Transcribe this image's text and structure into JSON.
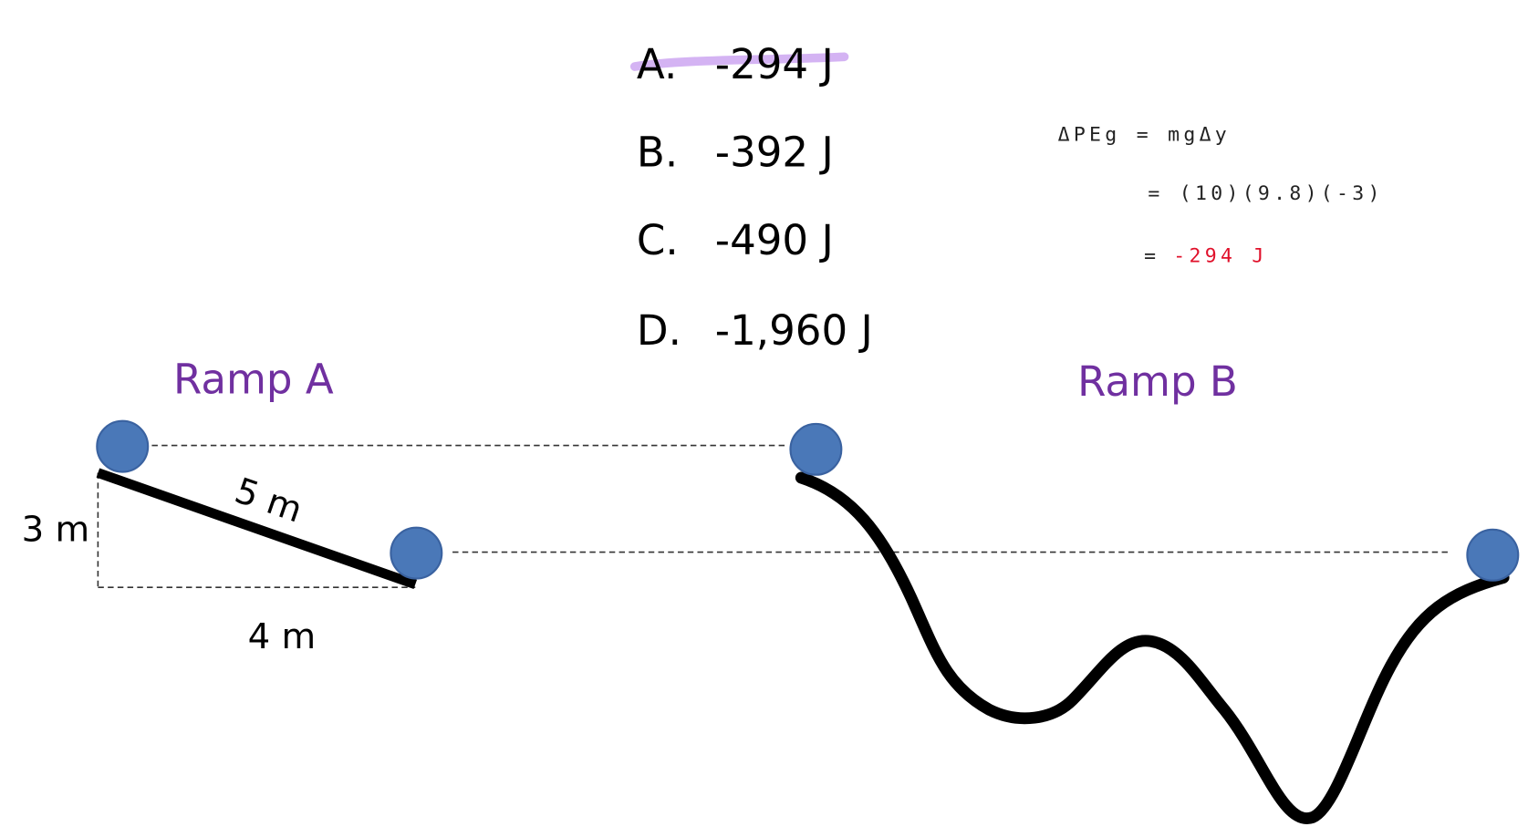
{
  "options": [
    {
      "letter": "A.",
      "value": "-294 J"
    },
    {
      "letter": "B.",
      "value": "-392 J"
    },
    {
      "letter": "C.",
      "value": "-490 J"
    },
    {
      "letter": "D.",
      "value": "-1,960 J"
    }
  ],
  "work": {
    "line1": "ΔPEg = mgΔy",
    "line2": "= (10)(9.8)(-3)",
    "line3_eq": "=",
    "line3_result": "-294 J"
  },
  "ramp_a": {
    "label": "Ramp A",
    "height": "3 m",
    "base": "4 m",
    "length": "5 m"
  },
  "ramp_b": {
    "label": "Ramp B"
  }
}
